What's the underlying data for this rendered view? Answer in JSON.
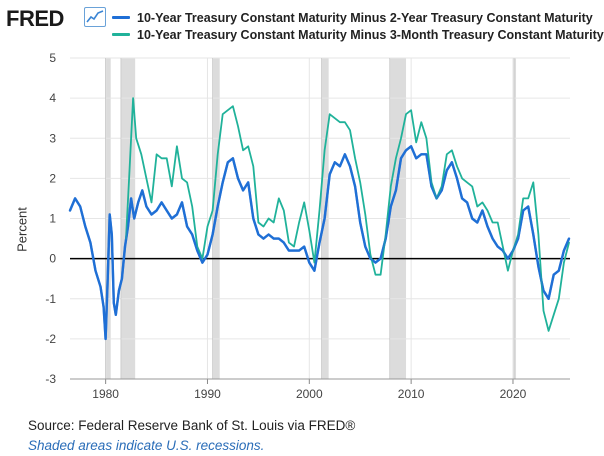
{
  "header": {
    "logo_text": "FRED",
    "logo_icon": "line-chart-icon"
  },
  "colors": {
    "series1": "#1f6fd6",
    "series2": "#20b29a",
    "recession": "#dcdcdc",
    "zero_line": "#000000"
  },
  "chart_data": {
    "type": "line",
    "xlabel": "",
    "ylabel": "Percent",
    "xlim": [
      1976.5,
      2025.6
    ],
    "ylim": [
      -3,
      5
    ],
    "yticks": [
      -3,
      -2,
      -1,
      0,
      1,
      2,
      3,
      4,
      5
    ],
    "xticks": [
      1980,
      1990,
      2000,
      2010,
      2020
    ],
    "ytick_labels": [
      "-3",
      "-2",
      "-1",
      "0",
      "1",
      "2",
      "3",
      "4",
      "5"
    ],
    "xtick_labels": [
      "1980",
      "1990",
      "2000",
      "2010",
      "2020"
    ],
    "grid": true,
    "legend_position": "top",
    "recessions": [
      [
        1980.0,
        1980.5
      ],
      [
        1981.5,
        1982.9
      ],
      [
        1990.5,
        1991.2
      ],
      [
        2001.2,
        2001.9
      ],
      [
        2007.9,
        2009.5
      ],
      [
        2020.1,
        2020.3
      ]
    ],
    "series": [
      {
        "name": "10-Year Treasury Constant Maturity Minus 2-Year Treasury Constant Maturity",
        "x": [
          1976.5,
          1977.0,
          1977.5,
          1978.0,
          1978.5,
          1979.0,
          1979.5,
          1979.8,
          1980.0,
          1980.2,
          1980.4,
          1980.6,
          1980.8,
          1981.0,
          1981.3,
          1981.6,
          1981.9,
          1982.2,
          1982.5,
          1982.8,
          1983.2,
          1983.6,
          1984.0,
          1984.5,
          1985.0,
          1985.5,
          1986.0,
          1986.5,
          1987.0,
          1987.5,
          1988.0,
          1988.5,
          1989.0,
          1989.5,
          1990.0,
          1990.5,
          1991.0,
          1991.5,
          1992.0,
          1992.5,
          1993.0,
          1993.5,
          1994.0,
          1994.5,
          1995.0,
          1995.5,
          1996.0,
          1996.5,
          1997.0,
          1997.5,
          1998.0,
          1998.5,
          1999.0,
          1999.5,
          2000.0,
          2000.5,
          2001.0,
          2001.5,
          2002.0,
          2002.5,
          2003.0,
          2003.5,
          2004.0,
          2004.5,
          2005.0,
          2005.5,
          2006.0,
          2006.5,
          2007.0,
          2007.5,
          2008.0,
          2008.5,
          2009.0,
          2009.5,
          2010.0,
          2010.5,
          2011.0,
          2011.5,
          2012.0,
          2012.5,
          2013.0,
          2013.5,
          2014.0,
          2014.5,
          2015.0,
          2015.5,
          2016.0,
          2016.5,
          2017.0,
          2017.5,
          2018.0,
          2018.5,
          2019.0,
          2019.5,
          2020.0,
          2020.5,
          2021.0,
          2021.5,
          2022.0,
          2022.5,
          2023.0,
          2023.5,
          2024.0,
          2024.5,
          2025.0,
          2025.5
        ],
        "y": [
          1.2,
          1.5,
          1.3,
          0.8,
          0.4,
          -0.3,
          -0.7,
          -1.2,
          -2.0,
          -0.5,
          1.1,
          0.6,
          -1.1,
          -1.4,
          -0.8,
          -0.5,
          0.3,
          0.8,
          1.5,
          1.0,
          1.4,
          1.7,
          1.3,
          1.1,
          1.2,
          1.4,
          1.2,
          1.0,
          1.1,
          1.4,
          0.8,
          0.6,
          0.2,
          -0.1,
          0.1,
          0.6,
          1.3,
          1.9,
          2.4,
          2.5,
          2.0,
          1.7,
          1.9,
          1.0,
          0.6,
          0.5,
          0.6,
          0.5,
          0.5,
          0.4,
          0.2,
          0.2,
          0.2,
          0.3,
          -0.1,
          -0.3,
          0.4,
          1.0,
          2.1,
          2.4,
          2.3,
          2.6,
          2.3,
          1.8,
          0.9,
          0.3,
          0.0,
          -0.1,
          0.0,
          0.5,
          1.3,
          1.7,
          2.5,
          2.7,
          2.8,
          2.5,
          2.6,
          2.6,
          1.8,
          1.5,
          1.7,
          2.2,
          2.4,
          2.0,
          1.5,
          1.4,
          1.0,
          0.9,
          1.2,
          0.8,
          0.5,
          0.3,
          0.2,
          0.0,
          0.2,
          0.5,
          1.2,
          1.3,
          0.6,
          -0.2,
          -0.8,
          -1.0,
          -0.4,
          -0.3,
          0.2,
          0.5
        ]
      },
      {
        "name": "10-Year Treasury Constant Maturity Minus 3-Month Treasury Constant Maturity",
        "x": [
          1982.0,
          1982.3,
          1982.5,
          1982.7,
          1983.0,
          1983.5,
          1984.0,
          1984.5,
          1985.0,
          1985.5,
          1986.0,
          1986.5,
          1987.0,
          1987.5,
          1988.0,
          1988.5,
          1989.0,
          1989.5,
          1990.0,
          1990.5,
          1991.0,
          1991.5,
          1992.0,
          1992.5,
          1993.0,
          1993.5,
          1994.0,
          1994.5,
          1995.0,
          1995.5,
          1996.0,
          1996.5,
          1997.0,
          1997.5,
          1998.0,
          1998.5,
          1999.0,
          1999.5,
          2000.0,
          2000.5,
          2001.0,
          2001.5,
          2002.0,
          2002.5,
          2003.0,
          2003.5,
          2004.0,
          2004.5,
          2005.0,
          2005.5,
          2006.0,
          2006.5,
          2007.0,
          2007.5,
          2008.0,
          2008.5,
          2009.0,
          2009.5,
          2010.0,
          2010.5,
          2011.0,
          2011.5,
          2012.0,
          2012.5,
          2013.0,
          2013.5,
          2014.0,
          2014.5,
          2015.0,
          2015.5,
          2016.0,
          2016.5,
          2017.0,
          2017.5,
          2018.0,
          2018.5,
          2019.0,
          2019.5,
          2020.0,
          2020.5,
          2021.0,
          2021.5,
          2022.0,
          2022.5,
          2023.0,
          2023.5,
          2024.0,
          2024.5,
          2025.0,
          2025.5
        ],
        "y": [
          0.5,
          2.0,
          3.0,
          4.0,
          3.0,
          2.6,
          2.0,
          1.4,
          2.6,
          2.5,
          2.5,
          1.8,
          2.8,
          2.0,
          1.9,
          1.3,
          0.3,
          0.0,
          0.8,
          1.2,
          2.6,
          3.6,
          3.7,
          3.8,
          3.3,
          2.7,
          2.8,
          2.3,
          0.9,
          0.8,
          1.0,
          0.9,
          1.5,
          1.2,
          0.4,
          0.3,
          0.9,
          1.4,
          0.7,
          -0.1,
          1.2,
          2.7,
          3.6,
          3.5,
          3.4,
          3.4,
          3.2,
          2.5,
          1.9,
          1.1,
          0.1,
          -0.4,
          -0.4,
          0.6,
          1.8,
          2.5,
          3.0,
          3.6,
          3.7,
          2.9,
          3.4,
          3.0,
          1.9,
          1.5,
          1.8,
          2.6,
          2.7,
          2.3,
          2.0,
          1.9,
          1.8,
          1.3,
          1.4,
          1.2,
          0.9,
          0.9,
          0.3,
          -0.3,
          0.2,
          0.6,
          1.5,
          1.5,
          1.9,
          0.6,
          -1.3,
          -1.8,
          -1.4,
          -1.0,
          -0.1,
          0.4
        ]
      }
    ]
  },
  "footer": {
    "source": "Source: Federal Reserve Bank of St. Louis via FRED®",
    "note": "Shaded areas indicate U.S. recessions."
  }
}
